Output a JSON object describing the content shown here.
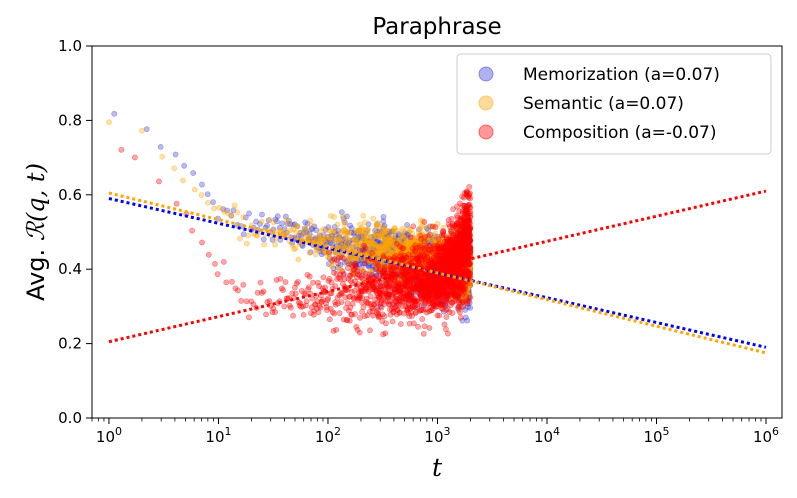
{
  "chart_data": {
    "type": "scatter",
    "title": "Paraphrase",
    "xlabel": "t",
    "ylabel_prefix": "Avg. ",
    "ylabel_math": "ℛ(q, t)",
    "xscale": "log",
    "xlim": [
      0.7,
      1400000
    ],
    "ylim": [
      0.0,
      1.0
    ],
    "yticks": [
      0.0,
      0.2,
      0.4,
      0.6,
      0.8,
      1.0
    ],
    "ytick_labels": [
      "0.0",
      "0.2",
      "0.4",
      "0.6",
      "0.8",
      "1.0"
    ],
    "xticks": [
      1,
      10,
      100,
      1000,
      10000,
      100000,
      1000000
    ],
    "xtick_labels": [
      {
        "base": "10",
        "exp": "0"
      },
      {
        "base": "10",
        "exp": "1"
      },
      {
        "base": "10",
        "exp": "2"
      },
      {
        "base": "10",
        "exp": "3"
      },
      {
        "base": "10",
        "exp": "4"
      },
      {
        "base": "10",
        "exp": "5"
      },
      {
        "base": "10",
        "exp": "6"
      }
    ],
    "legend_position": "top-right",
    "series": [
      {
        "name": "Memorization (a=0.07)",
        "color": "#3b3bdc",
        "trend_color": "#0000ff",
        "trend": {
          "x": [
            1,
            1000000
          ],
          "y": [
            0.59,
            0.19
          ]
        },
        "sample_points": [
          [
            1,
            0.81
          ],
          [
            2,
            0.79
          ],
          [
            3,
            0.73
          ],
          [
            4,
            0.71
          ],
          [
            5,
            0.68
          ],
          [
            7,
            0.63
          ],
          [
            10,
            0.56
          ],
          [
            20,
            0.52
          ],
          [
            40,
            0.5
          ],
          [
            100,
            0.47
          ],
          [
            300,
            0.44
          ],
          [
            1000,
            0.4
          ],
          [
            2000,
            0.4
          ]
        ]
      },
      {
        "name": "Semantic (a=0.07)",
        "color": "#ffa500",
        "trend_color": "#ffa500",
        "trend": {
          "x": [
            1,
            1000000
          ],
          "y": [
            0.605,
            0.175
          ]
        },
        "sample_points": [
          [
            1,
            0.79
          ],
          [
            2,
            0.77
          ],
          [
            3,
            0.7
          ],
          [
            5,
            0.64
          ],
          [
            10,
            0.55
          ],
          [
            30,
            0.5
          ],
          [
            100,
            0.47
          ],
          [
            300,
            0.45
          ],
          [
            1000,
            0.42
          ],
          [
            2000,
            0.41
          ]
        ]
      },
      {
        "name": "Composition (a=-0.07)",
        "color": "#ff0000",
        "trend_color": "#ff0000",
        "trend": {
          "x": [
            1,
            1000000
          ],
          "y": [
            0.205,
            0.61
          ]
        },
        "sample_points": [
          [
            1,
            0.73
          ],
          [
            2,
            0.68
          ],
          [
            3,
            0.63
          ],
          [
            5,
            0.54
          ],
          [
            10,
            0.4
          ],
          [
            20,
            0.32
          ],
          [
            50,
            0.32
          ],
          [
            100,
            0.33
          ],
          [
            300,
            0.35
          ],
          [
            1000,
            0.38
          ],
          [
            2000,
            0.45
          ]
        ]
      }
    ]
  }
}
